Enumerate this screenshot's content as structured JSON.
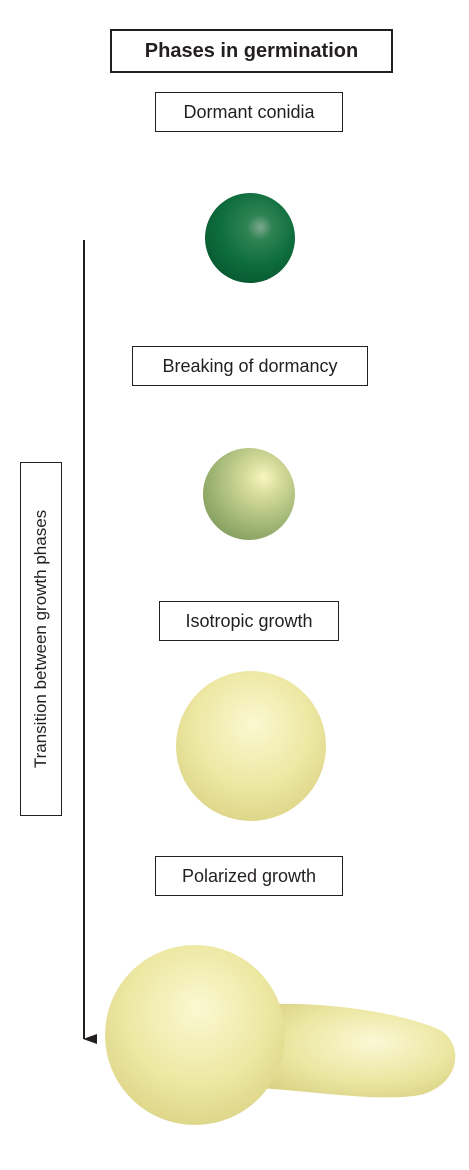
{
  "title": "Phases in germination",
  "phases": [
    {
      "label": "Dormant conidia"
    },
    {
      "label": "Breaking of dormancy"
    },
    {
      "label": "Isotropic growth"
    },
    {
      "label": "Polarized growth"
    }
  ],
  "axis_label": "Transition between growth phases",
  "colors": {
    "dormant": "#0d6b3c",
    "breaking": "#98ad6c",
    "isotropic": "#ece7a0",
    "polarized": "#ece7a0",
    "line": "#231f20"
  }
}
